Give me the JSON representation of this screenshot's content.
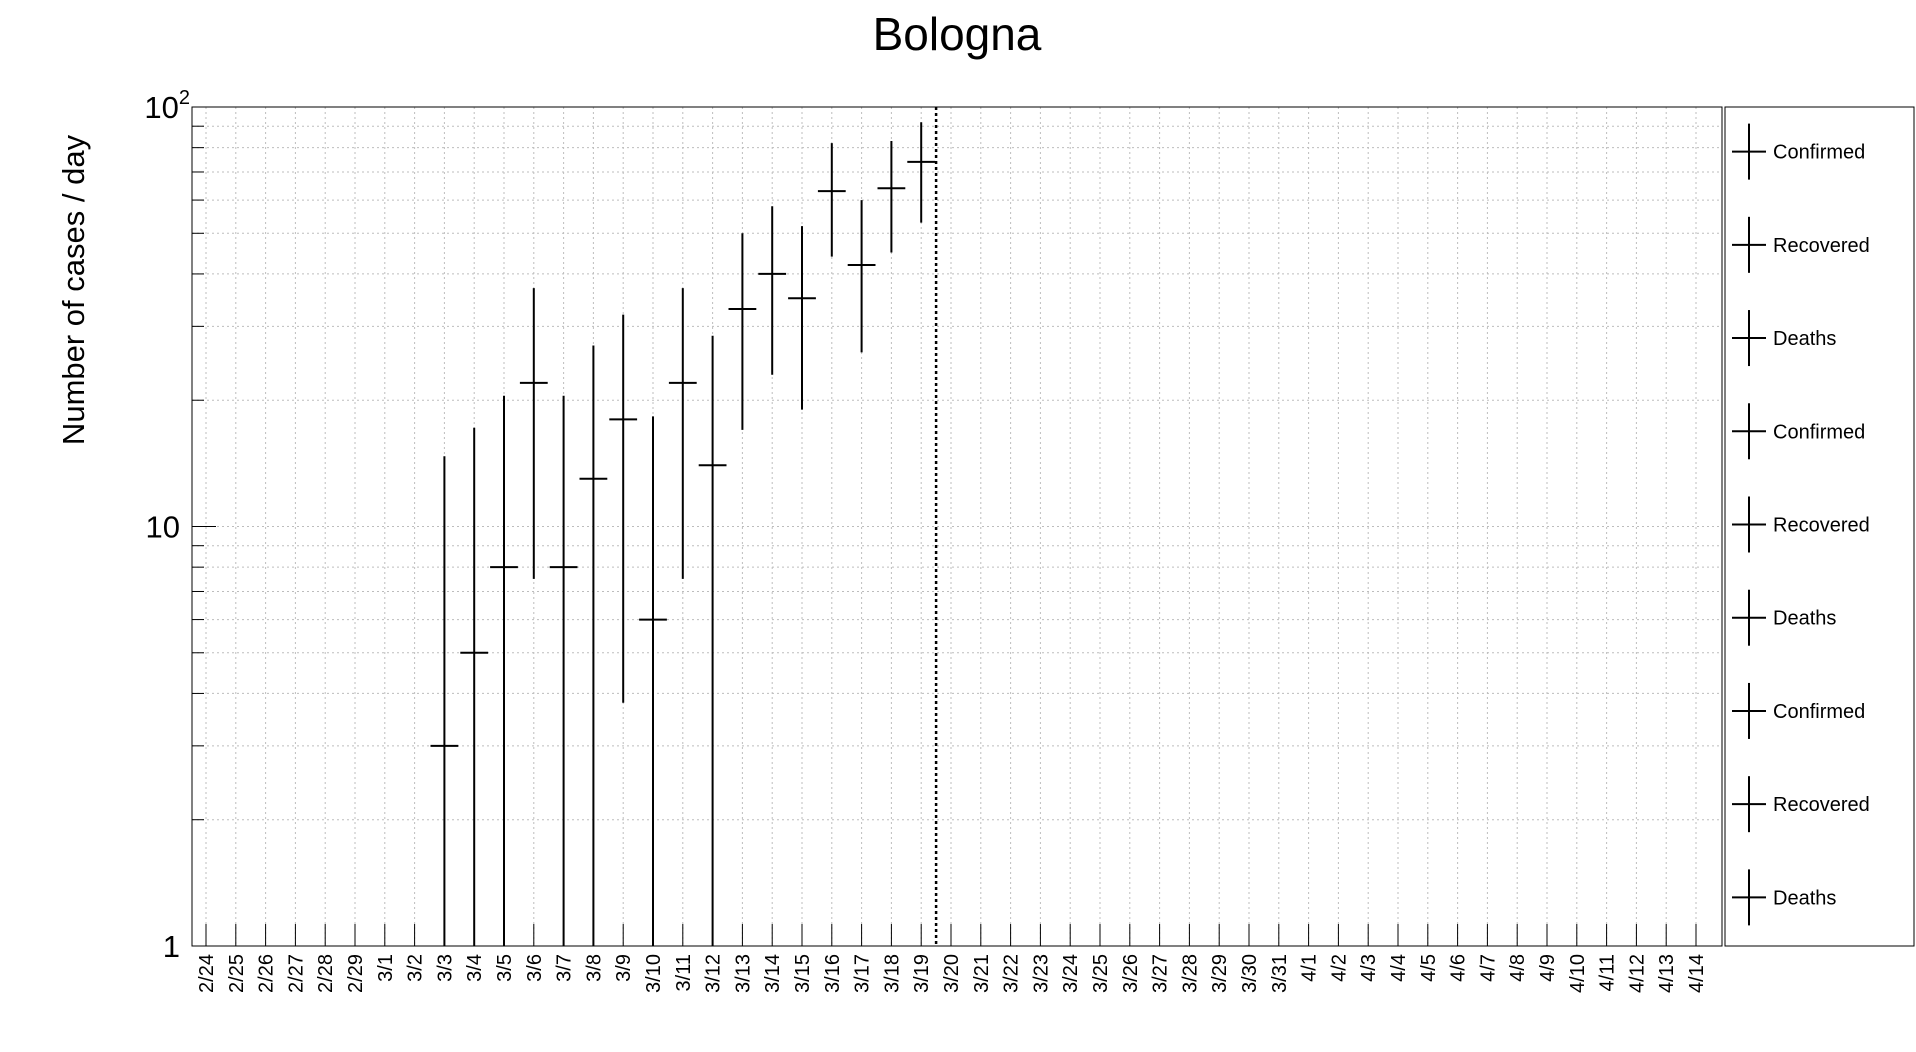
{
  "chart_data": {
    "type": "scatter",
    "title": "Bologna",
    "ylabel": "Number of cases / day",
    "xlabel": "",
    "yscale": "log",
    "ylim": [
      1,
      100
    ],
    "y_tick_labels": [
      {
        "value": 1,
        "label": "1"
      },
      {
        "value": 10,
        "label": "10"
      },
      {
        "value": 100,
        "label": "10",
        "sup": "2"
      }
    ],
    "categories": [
      "2/24",
      "2/25",
      "2/26",
      "2/27",
      "2/28",
      "2/29",
      "3/1",
      "3/2",
      "3/3",
      "3/4",
      "3/5",
      "3/6",
      "3/7",
      "3/8",
      "3/9",
      "3/10",
      "3/11",
      "3/12",
      "3/13",
      "3/14",
      "3/15",
      "3/16",
      "3/17",
      "3/18",
      "3/19",
      "3/20",
      "3/21",
      "3/22",
      "3/23",
      "3/24",
      "3/25",
      "3/26",
      "3/27",
      "3/28",
      "3/29",
      "3/30",
      "3/31",
      "4/1",
      "4/2",
      "4/3",
      "4/4",
      "4/5",
      "4/6",
      "4/7",
      "4/8",
      "4/9",
      "4/10",
      "4/11",
      "4/12",
      "4/13",
      "4/14"
    ],
    "grid": true,
    "marker_line_category": "3/20",
    "points": [
      {
        "x": "3/3",
        "y": 3,
        "ylow": 1,
        "yhigh": 14.7
      },
      {
        "x": "3/4",
        "y": 5,
        "ylow": 1,
        "yhigh": 17.2
      },
      {
        "x": "3/5",
        "y": 8,
        "ylow": 1,
        "yhigh": 20.5
      },
      {
        "x": "3/6",
        "y": 22,
        "ylow": 7.5,
        "yhigh": 37
      },
      {
        "x": "3/7",
        "y": 8,
        "ylow": 1,
        "yhigh": 20.5
      },
      {
        "x": "3/8",
        "y": 13,
        "ylow": 1,
        "yhigh": 27
      },
      {
        "x": "3/9",
        "y": 18,
        "ylow": 3.8,
        "yhigh": 32
      },
      {
        "x": "3/10",
        "y": 6,
        "ylow": 1,
        "yhigh": 18.3
      },
      {
        "x": "3/11",
        "y": 22,
        "ylow": 7.5,
        "yhigh": 37
      },
      {
        "x": "3/12",
        "y": 14,
        "ylow": 1,
        "yhigh": 28.5
      },
      {
        "x": "3/13",
        "y": 33,
        "ylow": 17,
        "yhigh": 50
      },
      {
        "x": "3/14",
        "y": 40,
        "ylow": 23,
        "yhigh": 58
      },
      {
        "x": "3/15",
        "y": 35,
        "ylow": 19,
        "yhigh": 52
      },
      {
        "x": "3/16",
        "y": 63,
        "ylow": 44,
        "yhigh": 82
      },
      {
        "x": "3/17",
        "y": 42,
        "ylow": 26,
        "yhigh": 60
      },
      {
        "x": "3/18",
        "y": 64,
        "ylow": 45,
        "yhigh": 83
      },
      {
        "x": "3/19",
        "y": 74,
        "ylow": 53,
        "yhigh": 92
      }
    ],
    "legend": {
      "placement": "right",
      "entries": [
        "Confirmed",
        "Recovered",
        "Deaths",
        "Confirmed",
        "Recovered",
        "Deaths",
        "Confirmed",
        "Recovered",
        "Deaths"
      ]
    }
  }
}
